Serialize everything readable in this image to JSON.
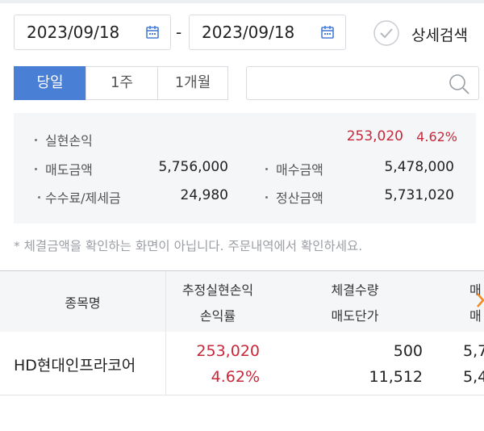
{
  "date_range": {
    "start": "2023/09/18",
    "separator": "-",
    "end": "2023/09/18"
  },
  "detail_search": "상세검색",
  "tabs": [
    "당일",
    "1주",
    "1개월"
  ],
  "summary": {
    "realized": {
      "label": "실현손익",
      "amount": "253,020",
      "rate": "4.62%"
    },
    "rows": [
      [
        {
          "label": "매도금액",
          "value": "5,756,000"
        },
        {
          "label": "매수금액",
          "value": "5,478,000"
        }
      ],
      [
        {
          "label": "수수료/제세금",
          "value": "24,980"
        },
        {
          "label": "정산금액",
          "value": "5,731,020"
        }
      ]
    ]
  },
  "note": "* 체결금액을 확인하는 화면이 아닙니다. 주문내역에서 확인하세요.",
  "table": {
    "header": [
      [
        "종목명"
      ],
      [
        "추정실현손익",
        "손익률"
      ],
      [
        "체결수량",
        "매도단가"
      ],
      [
        "매",
        "매"
      ]
    ],
    "rows": [
      [
        [
          "HD현대인프라코어"
        ],
        [
          "253,020",
          "4.62%"
        ],
        [
          "500",
          "11,512"
        ],
        [
          "5,7",
          "5,4"
        ]
      ]
    ]
  }
}
